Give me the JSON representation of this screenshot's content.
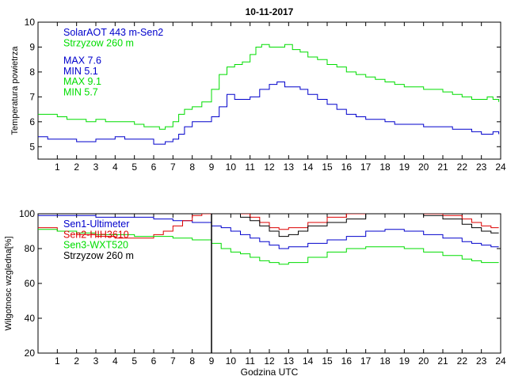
{
  "chart_data": [
    {
      "type": "line",
      "title": "10-11-2017",
      "ylabel": "Temperatura powietrza",
      "xlabel": "",
      "xlim": [
        0,
        24
      ],
      "ylim": [
        4.5,
        10
      ],
      "xticks": [
        1,
        2,
        3,
        4,
        5,
        6,
        7,
        8,
        9,
        10,
        11,
        12,
        13,
        14,
        15,
        16,
        17,
        18,
        19,
        20,
        21,
        22,
        23,
        24
      ],
      "yticks": [
        5,
        6,
        7,
        8,
        9,
        10
      ],
      "legend": [
        {
          "text": "SolarAOT 443 m-Sen2",
          "color": "#0000cc"
        },
        {
          "text": "Strzyzow 260 m",
          "color": "#00dd00"
        },
        {
          "text": "MAX 7.6",
          "color": "#0000cc"
        },
        {
          "text": "MIN 5.1",
          "color": "#0000cc"
        },
        {
          "text": "MAX 9.1",
          "color": "#00dd00"
        },
        {
          "text": "MIN 5.7",
          "color": "#00dd00"
        }
      ],
      "series": [
        {
          "name": "SolarAOT 443 m-Sen2",
          "color": "#0000cc",
          "x": [
            0.0,
            0.5,
            1.0,
            1.5,
            2.0,
            2.5,
            3.0,
            3.5,
            4.0,
            4.5,
            5.0,
            5.5,
            6.0,
            6.3,
            6.6,
            7.0,
            7.3,
            7.6,
            8.0,
            8.5,
            9.0,
            9.4,
            9.8,
            10.2,
            10.6,
            11.0,
            11.5,
            12.0,
            12.4,
            12.8,
            13.2,
            13.6,
            14.0,
            14.5,
            15.0,
            15.5,
            16.0,
            16.5,
            17.0,
            17.5,
            18.0,
            18.5,
            19.0,
            19.5,
            20.0,
            20.5,
            21.0,
            21.5,
            22.0,
            22.5,
            23.0,
            23.3,
            23.6,
            23.9
          ],
          "y": [
            5.4,
            5.3,
            5.3,
            5.3,
            5.2,
            5.2,
            5.3,
            5.3,
            5.4,
            5.3,
            5.3,
            5.3,
            5.1,
            5.1,
            5.2,
            5.3,
            5.5,
            5.8,
            6.0,
            6.0,
            6.2,
            6.6,
            7.1,
            6.9,
            6.9,
            7.0,
            7.3,
            7.5,
            7.6,
            7.4,
            7.4,
            7.3,
            7.1,
            6.9,
            6.7,
            6.5,
            6.3,
            6.2,
            6.1,
            6.1,
            6.0,
            5.9,
            5.9,
            5.9,
            5.8,
            5.8,
            5.8,
            5.7,
            5.7,
            5.6,
            5.5,
            5.5,
            5.6,
            5.5
          ]
        },
        {
          "name": "Strzyzow 260 m",
          "color": "#00dd00",
          "x": [
            0.0,
            0.5,
            1.0,
            1.5,
            2.0,
            2.5,
            3.0,
            3.5,
            4.0,
            4.5,
            5.0,
            5.5,
            6.0,
            6.3,
            6.6,
            7.0,
            7.3,
            7.6,
            8.0,
            8.5,
            9.0,
            9.4,
            9.8,
            10.2,
            10.6,
            11.0,
            11.3,
            11.6,
            12.0,
            12.4,
            12.8,
            13.2,
            13.6,
            14.0,
            14.5,
            15.0,
            15.5,
            16.0,
            16.5,
            17.0,
            17.5,
            18.0,
            18.5,
            19.0,
            19.5,
            20.0,
            20.5,
            21.0,
            21.5,
            22.0,
            22.5,
            23.0,
            23.3,
            23.6,
            23.9
          ],
          "y": [
            6.3,
            6.3,
            6.2,
            6.1,
            6.1,
            6.0,
            6.1,
            6.0,
            6.0,
            6.0,
            5.9,
            5.8,
            5.8,
            5.7,
            5.8,
            6.0,
            6.3,
            6.5,
            6.6,
            6.8,
            7.3,
            7.9,
            8.2,
            8.3,
            8.4,
            8.7,
            9.0,
            9.1,
            9.0,
            9.0,
            9.1,
            8.9,
            8.8,
            8.6,
            8.5,
            8.3,
            8.2,
            8.0,
            7.9,
            7.8,
            7.7,
            7.6,
            7.5,
            7.4,
            7.4,
            7.3,
            7.3,
            7.2,
            7.1,
            7.0,
            6.9,
            6.9,
            7.0,
            6.9,
            6.8
          ]
        }
      ]
    },
    {
      "type": "line",
      "title": "",
      "ylabel": "Wilgotnosc wzgledna[%]",
      "xlabel": "Godzina UTC",
      "xlim": [
        0,
        24
      ],
      "ylim": [
        20,
        100
      ],
      "xticks": [
        1,
        2,
        3,
        4,
        5,
        6,
        7,
        8,
        9,
        10,
        11,
        12,
        13,
        14,
        15,
        16,
        17,
        18,
        19,
        20,
        21,
        22,
        23,
        24
      ],
      "yticks": [
        20,
        40,
        60,
        80,
        100
      ],
      "vline_x": 9,
      "legend": [
        {
          "text": "Sen1-Ultimeter",
          "color": "#0000cc"
        },
        {
          "text": "Sen2-HIH3610",
          "color": "#dd0000"
        },
        {
          "text": "Sen3-WXT520",
          "color": "#00dd00"
        },
        {
          "text": "Strzyzow 260 m",
          "color": "#000000"
        }
      ],
      "series": [
        {
          "name": "Sen1-Ultimeter",
          "color": "#0000cc",
          "x": [
            0.0,
            1.0,
            2.0,
            3.0,
            4.0,
            5.0,
            6.0,
            7.0,
            8.0,
            9.0,
            9.5,
            10.0,
            10.5,
            11.0,
            11.5,
            12.0,
            12.5,
            13.0,
            14.0,
            15.0,
            16.0,
            17.0,
            18.0,
            19.0,
            20.0,
            21.0,
            22.0,
            22.5,
            23.0,
            23.5,
            23.9
          ],
          "y": [
            99,
            99,
            99,
            98,
            98,
            98,
            97,
            96,
            95,
            93,
            92,
            90,
            88,
            86,
            84,
            82,
            80,
            81,
            83,
            85,
            87,
            90,
            91,
            90,
            88,
            86,
            84,
            83,
            82,
            81,
            81
          ]
        },
        {
          "name": "Sen2-HIH3610",
          "color": "#dd0000",
          "x": [
            0.0,
            1.0,
            2.0,
            3.0,
            4.0,
            5.0,
            6.0,
            6.5,
            7.0,
            7.5,
            8.0,
            8.5,
            9.0,
            9.5,
            10.0,
            10.5,
            11.0,
            11.5,
            12.0,
            12.5,
            13.0,
            14.0,
            15.0,
            16.0,
            17.0,
            18.0,
            19.0,
            20.0,
            21.0,
            22.0,
            22.5,
            23.0,
            23.5,
            23.9
          ],
          "y": [
            92,
            90,
            88,
            87,
            86,
            86,
            88,
            90,
            93,
            96,
            99,
            100,
            100,
            100,
            100,
            100,
            98,
            95,
            92,
            91,
            92,
            95,
            98,
            100,
            100,
            100,
            100,
            100,
            99,
            97,
            95,
            93,
            92,
            92
          ]
        },
        {
          "name": "Sen3-WXT520",
          "color": "#00dd00",
          "x": [
            0.0,
            1.0,
            2.0,
            3.0,
            4.0,
            5.0,
            6.0,
            7.0,
            8.0,
            9.0,
            9.5,
            10.0,
            10.5,
            11.0,
            11.5,
            12.0,
            12.5,
            13.0,
            14.0,
            15.0,
            16.0,
            17.0,
            18.0,
            19.0,
            20.0,
            21.0,
            22.0,
            22.5,
            23.0,
            23.5,
            23.9
          ],
          "y": [
            91,
            90,
            89,
            88,
            88,
            87,
            87,
            86,
            85,
            83,
            80,
            78,
            77,
            75,
            73,
            72,
            71,
            72,
            75,
            78,
            80,
            81,
            81,
            80,
            78,
            76,
            74,
            73,
            72,
            72,
            72
          ]
        },
        {
          "name": "Strzyzow 260 m",
          "color": "#000000",
          "x": [
            9.0,
            9.3,
            9.6,
            10.0,
            10.5,
            11.0,
            11.5,
            12.0,
            12.5,
            13.0,
            13.5,
            14.0,
            15.0,
            16.0,
            17.0,
            18.0,
            19.0,
            20.0,
            21.0,
            22.0,
            22.5,
            23.0,
            23.5,
            23.9
          ],
          "y": [
            100,
            100,
            100,
            100,
            98,
            96,
            93,
            90,
            87,
            88,
            90,
            93,
            95,
            97,
            100,
            100,
            100,
            99,
            97,
            94,
            92,
            90,
            89,
            89
          ]
        }
      ]
    }
  ]
}
